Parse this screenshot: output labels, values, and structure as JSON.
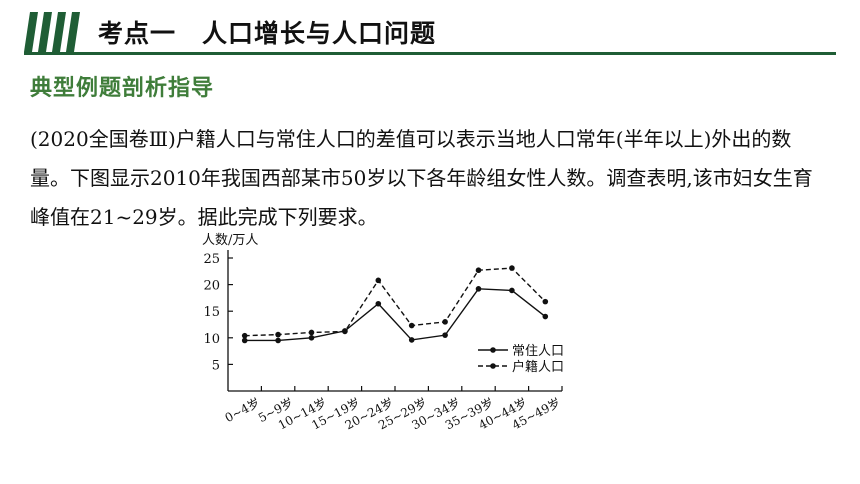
{
  "header": {
    "title": "考点一　人口增长与人口问题",
    "accent_color": "#1f5d35",
    "stripe_icon": "four-slanted-bars"
  },
  "subtitle": "典型例题剖析指导",
  "subtitle_color": "#3f7d3a",
  "question": {
    "text": "(2020全国卷Ⅲ)户籍人口与常住人口的差值可以表示当地人口常年(半年以上)外出的数量。下图显示2010年我国西部某市50岁以下各年龄组女性人数。调查表明,该市妇女生育峰值在21~29岁。据此完成下列要求。"
  },
  "chart_data": {
    "type": "line",
    "title": "",
    "ylabel": "人数/万人",
    "xlabel": "",
    "ylim": [
      0,
      25
    ],
    "yticks": [
      5,
      10,
      15,
      20,
      25
    ],
    "categories": [
      "0~4岁",
      "5~9岁",
      "10~14岁",
      "15~19岁",
      "20~24岁",
      "25~29岁",
      "30~34岁",
      "35~39岁",
      "40~44岁",
      "45~49岁"
    ],
    "series": [
      {
        "name": "常住人口",
        "style": "solid",
        "values": [
          9.5,
          9.5,
          10,
          11.3,
          16.4,
          9.6,
          10.5,
          19.2,
          18.9,
          14
        ]
      },
      {
        "name": "户籍人口",
        "style": "dashed",
        "values": [
          10.4,
          10.6,
          11,
          11.2,
          20.8,
          12.3,
          13,
          22.7,
          23.1,
          16.8
        ]
      }
    ],
    "legend_position": "inside-right",
    "grid": false
  }
}
